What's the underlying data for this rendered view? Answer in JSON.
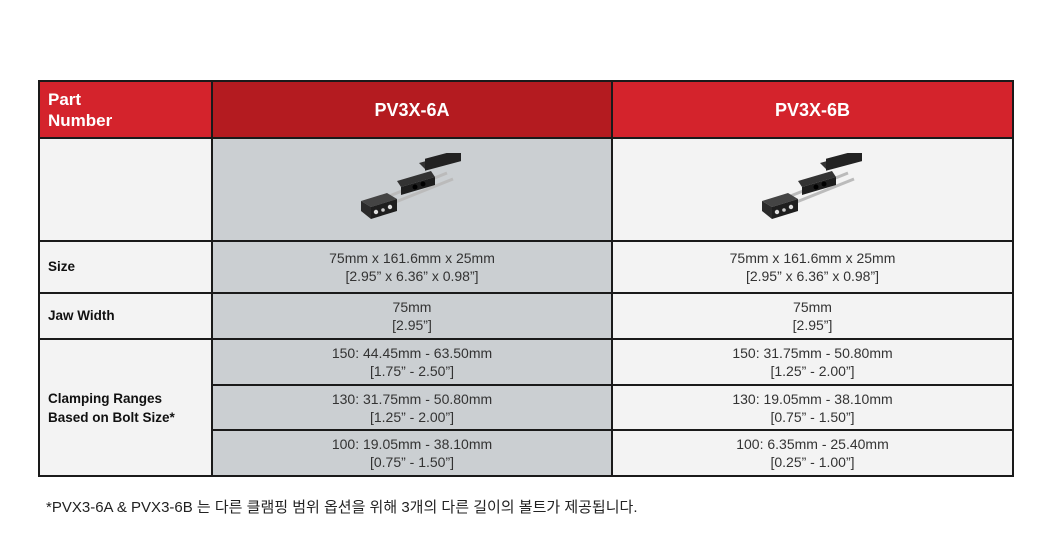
{
  "table": {
    "header": {
      "label": "Part Number",
      "col_a": "PV3X-6A",
      "col_b": "PV3X-6B"
    },
    "image_row": {
      "col_a_image": "vise-clamp-product-photo",
      "col_b_image": "vise-clamp-product-photo"
    },
    "size": {
      "label": "Size",
      "a_mm": "75mm x 161.6mm x 25mm",
      "a_in": "[2.95” x 6.36” x 0.98”]",
      "b_mm": "75mm x 161.6mm x 25mm",
      "b_in": "[2.95” x 6.36” x 0.98”]"
    },
    "jaw": {
      "label": "Jaw Width",
      "a_mm": "75mm",
      "a_in": "[2.95”]",
      "b_mm": "75mm",
      "b_in": "[2.95”]"
    },
    "clamping": {
      "label_1": "Clamping Ranges",
      "label_2": "Based on Bolt Size*",
      "rows": [
        {
          "a_mm": "150: 44.45mm - 63.50mm",
          "a_in": "[1.75” - 2.50”]",
          "b_mm": "150: 31.75mm - 50.80mm",
          "b_in": "[1.25” - 2.00”]"
        },
        {
          "a_mm": "130: 31.75mm - 50.80mm",
          "a_in": "[1.25” - 2.00”]",
          "b_mm": "130: 19.05mm - 38.10mm",
          "b_in": "[0.75” - 1.50”]"
        },
        {
          "a_mm": "100: 19.05mm - 38.10mm",
          "a_in": "[0.75” - 1.50”]",
          "b_mm": "100: 6.35mm - 25.40mm",
          "b_in": "[0.25” - 1.00”]"
        }
      ]
    }
  },
  "footnote": "*PVX3-6A & PVX3-6B 는 다른 클램핑 범위 옵션을 위해 3개의 다른 길이의 볼트가 제공됩니다.",
  "colors": {
    "header_red": "#d4232c",
    "header_dark_red": "#b41b20",
    "col_a_bg": "#cbcfd2",
    "cell_bg": "#f3f3f3"
  }
}
